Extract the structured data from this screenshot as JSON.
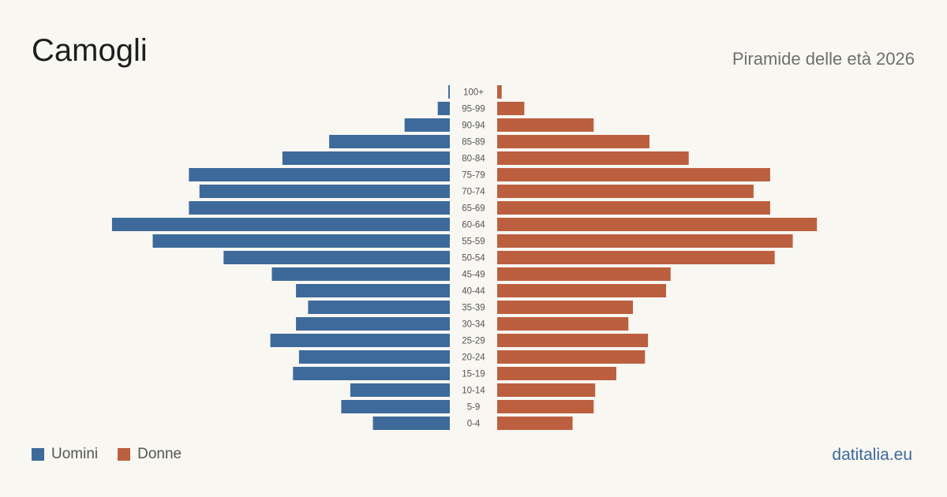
{
  "header": {
    "title": "Camogli",
    "subtitle": "Piramide delle età 2026"
  },
  "legend": {
    "men_label": "Uomini",
    "women_label": "Donne"
  },
  "brand": "datitalia.eu",
  "colors": {
    "men": "#3d6a9b",
    "women": "#bc5f3f",
    "background": "#f9f7f2",
    "brand": "#3d6a9b"
  },
  "chart_data": {
    "type": "bar",
    "orientation": "horizontal-pyramid",
    "categories": [
      "100+",
      "95-99",
      "90-94",
      "85-89",
      "80-84",
      "75-79",
      "70-74",
      "65-69",
      "60-64",
      "55-59",
      "50-54",
      "45-49",
      "40-44",
      "35-39",
      "30-34",
      "25-29",
      "20-24",
      "15-19",
      "10-14",
      "5-9",
      "0-4"
    ],
    "series": [
      {
        "name": "Uomini",
        "side": "left",
        "values": [
          1,
          8,
          30,
          80,
          111,
          173,
          166,
          173,
          224,
          197,
          150,
          118,
          102,
          94,
          102,
          119,
          100,
          104,
          66,
          72,
          51
        ]
      },
      {
        "name": "Donne",
        "side": "right",
        "values": [
          3,
          18,
          64,
          101,
          127,
          181,
          170,
          181,
          212,
          196,
          184,
          115,
          112,
          90,
          87,
          100,
          98,
          79,
          65,
          64,
          50
        ]
      }
    ],
    "xlim": [
      0,
      225
    ]
  }
}
